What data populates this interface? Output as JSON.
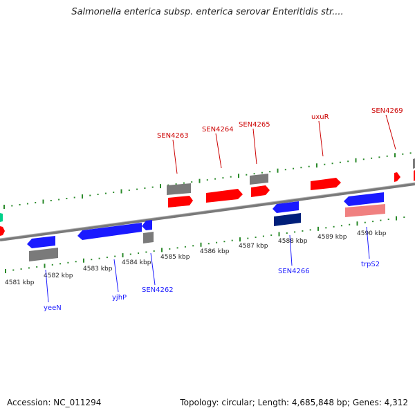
{
  "title": "Salmonella enterica subsp. enterica serovar Enteritidis str....",
  "footer": {
    "accession": "Accession: NC_011294",
    "summary": "Topology: circular; Length: 4,685,848 bp; Genes: 4,312"
  },
  "colors": {
    "forward": "#ff0000",
    "reverse": "#1a1aff",
    "gray": "#7a7a7a",
    "dark_blue": "#001f7a",
    "pink": "#f08080",
    "teal": "#00d08a",
    "tick": "#2a8a2a",
    "axis": "#8a8a8a"
  },
  "scale": {
    "labels": [
      "4581 kbp",
      "4582 kbp",
      "4583 kbp",
      "4584 kbp",
      "4585 kbp",
      "4586 kbp",
      "4587 kbp",
      "4588 kbp",
      "4589 kbp",
      "4590 kbp"
    ]
  },
  "gene_labels": {
    "top": [
      "SEN4263",
      "SEN4264",
      "SEN4265",
      "uxuR",
      "SEN4269"
    ],
    "bottom": [
      "yeeN",
      "yjhP",
      "SEN4262",
      "SEN4266",
      "trpS2"
    ]
  }
}
